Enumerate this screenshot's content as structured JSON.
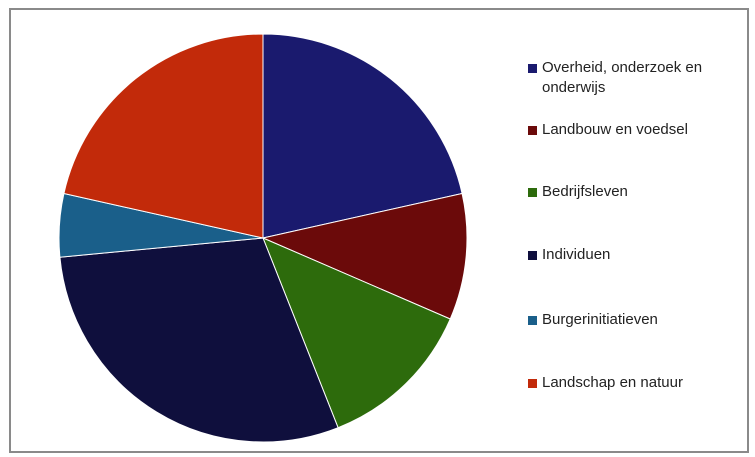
{
  "chart_data": {
    "type": "pie",
    "title": "",
    "start_angle_deg": 0,
    "direction": "clockwise",
    "legend_position": "right",
    "series": [
      {
        "label": "Overheid, onderzoek en onderwijs",
        "value": 21.5,
        "color": "#1a1a6e"
      },
      {
        "label": "Landbouw en voedsel",
        "value": 10.0,
        "color": "#6b0a0a"
      },
      {
        "label": "Bedrijfsleven",
        "value": 12.5,
        "color": "#2d6b0c"
      },
      {
        "label": "Individuen",
        "value": 29.5,
        "color": "#0f0f3d"
      },
      {
        "label": "Burgerinitiatieven",
        "value": 5.0,
        "color": "#1a5f8a"
      },
      {
        "label": "Landschap en natuur",
        "value": 21.5,
        "color": "#c22a0a"
      }
    ]
  }
}
